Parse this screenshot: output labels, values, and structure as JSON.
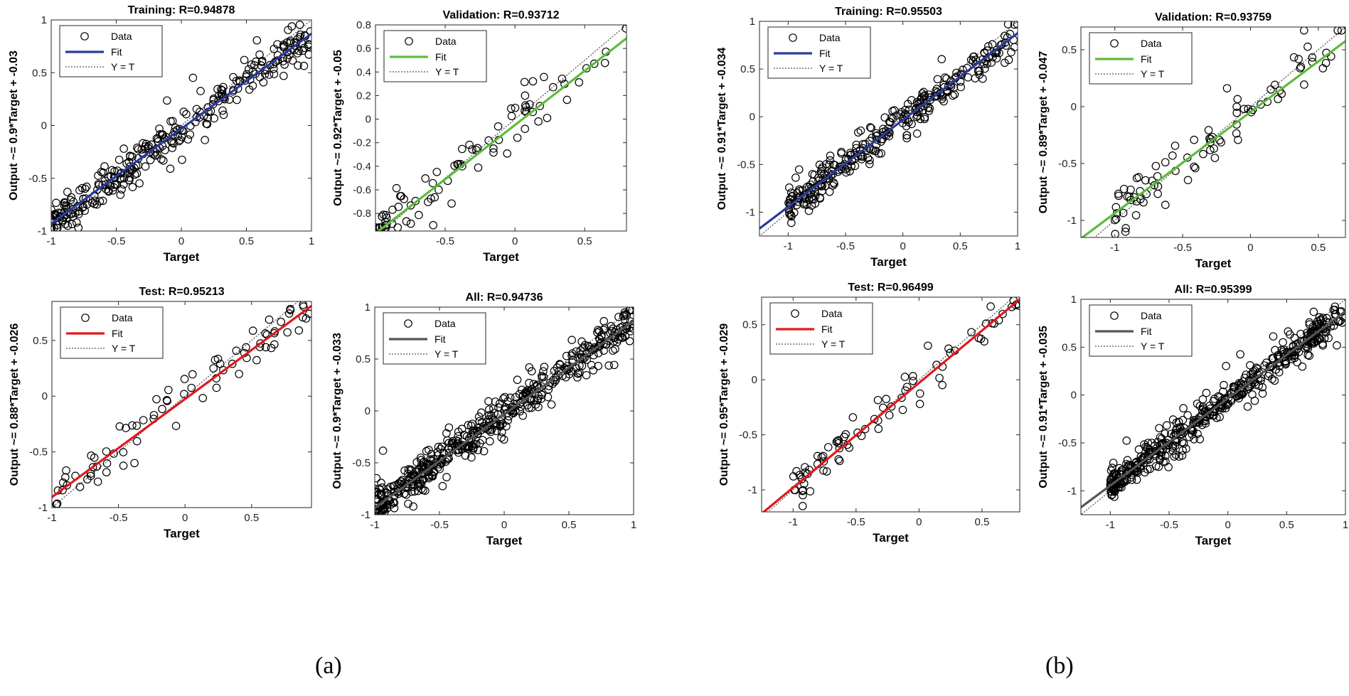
{
  "figure": {
    "panel_labels": [
      "(a)",
      "(b)"
    ]
  },
  "legend": {
    "data": "Data",
    "fit": "Fit",
    "identity": "Y = T"
  },
  "colors": {
    "training": "#2b3a9e",
    "validation": "#5dbb3a",
    "test": "#e0191f",
    "all": "#555555",
    "identity": "#555555",
    "marker": "#000000"
  },
  "chart_data": [
    {
      "type": "scatter",
      "group": "a",
      "kind": "training",
      "title": "Training: R=0.94878",
      "xlabel": "Target",
      "ylabel": "Output ~= 0.9*Target + -0.03",
      "xlim": [
        -1,
        1
      ],
      "ylim": [
        -1,
        1
      ],
      "xticks": [
        -1,
        -0.5,
        0,
        0.5,
        1
      ],
      "xticklabels": [
        "-1",
        "-0.5",
        "0",
        "0.5",
        "1"
      ],
      "yticks": [
        -1,
        -0.5,
        0,
        0.5,
        1
      ],
      "yticklabels": [
        "-1",
        "-0.5",
        "0",
        "0.5",
        "1"
      ],
      "slope": 0.9,
      "intercept": -0.03,
      "n_points": 300,
      "seed": 11,
      "noise": 0.09
    },
    {
      "type": "scatter",
      "group": "a",
      "kind": "validation",
      "title": "Validation: R=0.93712",
      "xlabel": "Target",
      "ylabel": "Output ~= 0.92*Target + -0.05",
      "xlim": [
        -1,
        0.8
      ],
      "ylim": [
        -0.95,
        0.8
      ],
      "xticks": [
        -0.5,
        0,
        0.5
      ],
      "xticklabels": [
        "-0.5",
        "0",
        "0.5"
      ],
      "yticks": [
        -0.8,
        -0.6,
        -0.4,
        -0.2,
        0,
        0.2,
        0.4,
        0.6,
        0.8
      ],
      "yticklabels": [
        "-0.8",
        "-0.6",
        "-0.4",
        "-0.2",
        "0",
        "0.2",
        "0.4",
        "0.6",
        "0.8"
      ],
      "slope": 0.92,
      "intercept": -0.05,
      "n_points": 85,
      "seed": 23,
      "noise": 0.1
    },
    {
      "type": "scatter",
      "group": "a",
      "kind": "test",
      "title": "Test: R=0.95213",
      "xlabel": "Target",
      "ylabel": "Output ~= 0.88*Target + -0.026",
      "xlim": [
        -1,
        0.95
      ],
      "ylim": [
        -1,
        0.85
      ],
      "xticks": [
        -1,
        -0.5,
        0,
        0.5
      ],
      "xticklabels": [
        "-1",
        "-0.5",
        "0",
        "0.5"
      ],
      "yticks": [
        -1,
        -0.5,
        0,
        0.5
      ],
      "yticklabels": [
        "-1",
        "-0.5",
        "0",
        "0.5"
      ],
      "slope": 0.88,
      "intercept": -0.026,
      "n_points": 80,
      "seed": 37,
      "noise": 0.09
    },
    {
      "type": "scatter",
      "group": "a",
      "kind": "all",
      "title": "All: R=0.94736",
      "xlabel": "Target",
      "ylabel": "Output ~= 0.9*Target + -0.033",
      "xlim": [
        -1,
        1
      ],
      "ylim": [
        -1,
        1
      ],
      "xticks": [
        -1,
        -0.5,
        0,
        0.5,
        1
      ],
      "xticklabels": [
        "-1",
        "-0.5",
        "0",
        "0.5",
        "1"
      ],
      "yticks": [
        -1,
        -0.5,
        0,
        0.5,
        1
      ],
      "yticklabels": [
        "-1",
        "-0.5",
        "0",
        "0.5",
        "1"
      ],
      "slope": 0.9,
      "intercept": -0.033,
      "n_points": 480,
      "seed": 41,
      "noise": 0.09
    },
    {
      "type": "scatter",
      "group": "b",
      "kind": "training",
      "title": "Training: R=0.95503",
      "xlabel": "Target",
      "ylabel": "Output ~= 0.91*Target + -0.034",
      "xlim": [
        -1.25,
        1
      ],
      "ylim": [
        -1.25,
        1
      ],
      "xticks": [
        -1,
        -0.5,
        0,
        0.5,
        1
      ],
      "xticklabels": [
        "-1",
        "-0.5",
        "0",
        "0.5",
        "1"
      ],
      "yticks": [
        -1,
        -0.5,
        0,
        0.5,
        1
      ],
      "yticklabels": [
        "-1",
        "-0.5",
        "0",
        "0.5",
        "1"
      ],
      "slope": 0.91,
      "intercept": -0.034,
      "n_points": 300,
      "seed": 53,
      "noise": 0.09
    },
    {
      "type": "scatter",
      "group": "b",
      "kind": "validation",
      "title": "Validation: R=0.93759",
      "xlabel": "Target",
      "ylabel": "Output ~= 0.89*Target + -0.047",
      "xlim": [
        -1.25,
        0.7
      ],
      "ylim": [
        -1.15,
        0.7
      ],
      "xticks": [
        -1,
        -0.5,
        0,
        0.5
      ],
      "xticklabels": [
        "-1",
        "-0.5",
        "0",
        "0.5"
      ],
      "yticks": [
        -1,
        -0.5,
        0,
        0.5
      ],
      "yticklabels": [
        "-1",
        "-0.5",
        "0",
        "0.5"
      ],
      "slope": 0.89,
      "intercept": -0.047,
      "n_points": 85,
      "seed": 67,
      "noise": 0.1
    },
    {
      "type": "scatter",
      "group": "b",
      "kind": "test",
      "title": "Test: R=0.96499",
      "xlabel": "Target",
      "ylabel": "Output ~= 0.95*Target + -0.029",
      "xlim": [
        -1.25,
        0.8
      ],
      "ylim": [
        -1.2,
        0.75
      ],
      "xticks": [
        -1,
        -0.5,
        0,
        0.5
      ],
      "xticklabels": [
        "-1",
        "-0.5",
        "0",
        "0.5"
      ],
      "yticks": [
        -1,
        -0.5,
        0,
        0.5
      ],
      "yticklabels": [
        "-1",
        "-0.5",
        "0",
        "0.5"
      ],
      "slope": 0.95,
      "intercept": -0.029,
      "n_points": 80,
      "seed": 79,
      "noise": 0.08
    },
    {
      "type": "scatter",
      "group": "b",
      "kind": "all",
      "title": "All: R=0.95399",
      "xlabel": "Target",
      "ylabel": "Output ~= 0.91*Target + -0.035",
      "xlim": [
        -1.25,
        1
      ],
      "ylim": [
        -1.25,
        1
      ],
      "xticks": [
        -1,
        -0.5,
        0,
        0.5,
        1
      ],
      "xticklabels": [
        "-1",
        "-0.5",
        "0",
        "0.5",
        "1"
      ],
      "yticks": [
        -1,
        -0.5,
        0,
        0.5,
        1
      ],
      "yticklabels": [
        "-1",
        "-0.5",
        "0",
        "0.5",
        "1"
      ],
      "slope": 0.91,
      "intercept": -0.035,
      "n_points": 480,
      "seed": 89,
      "noise": 0.08
    }
  ]
}
